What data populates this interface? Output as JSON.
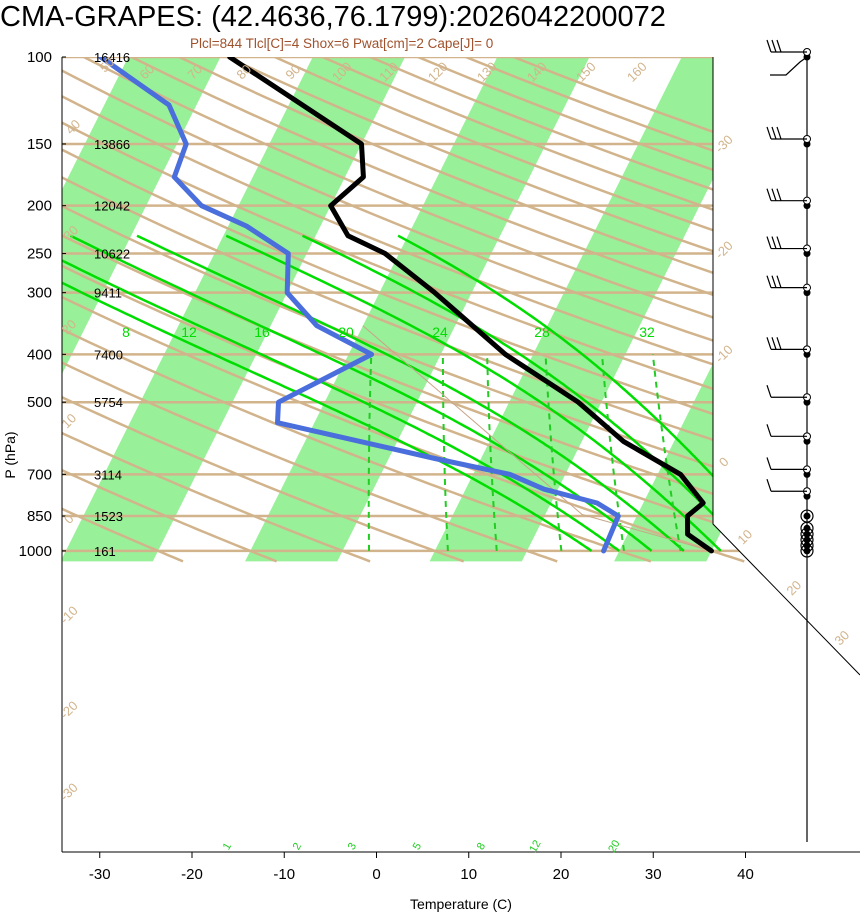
{
  "title": "CMA-GRAPES: (42.4636,76.1799):2026042200072",
  "subtitle": "Plcl=844 Tlcl[C]=4 Shox=6 Pwat[cm]=2 Cape[J]= 0",
  "chart_data": {
    "type": "line",
    "chart_kind": "skew-T log-P diagram",
    "xlabel": "Temperature (C)",
    "ylabel": "P (hPa)",
    "x_ticks": [
      -30,
      -20,
      -10,
      0,
      10,
      20,
      30,
      40
    ],
    "pressure_levels": [
      {
        "p": 100,
        "label": "100",
        "height": "16416"
      },
      {
        "p": 150,
        "label": "150",
        "height": "13866"
      },
      {
        "p": 200,
        "label": "200",
        "height": "12042"
      },
      {
        "p": 250,
        "label": "250",
        "height": "10622"
      },
      {
        "p": 300,
        "label": "300",
        "height": "9411"
      },
      {
        "p": 400,
        "label": "400",
        "height": "7400"
      },
      {
        "p": 500,
        "label": "500",
        "height": "5754"
      },
      {
        "p": 700,
        "label": "700",
        "height": "3114"
      },
      {
        "p": 850,
        "label": "850",
        "height": "1523"
      },
      {
        "p": 1000,
        "label": "1000",
        "height": "161"
      }
    ],
    "dry_adiabat_labels": [
      "-30",
      "-20",
      "-10",
      "0",
      "10",
      "20",
      "30",
      "40",
      "50",
      "60",
      "70",
      "80",
      "90",
      "100",
      "110",
      "120",
      "130",
      "140",
      "150",
      "160"
    ],
    "moist_adiabat_labels": [
      "8",
      "12",
      "16",
      "20",
      "24",
      "28",
      "32"
    ],
    "mixing_ratio_labels": [
      "1",
      "2",
      "3",
      "5",
      "8",
      "12",
      "20"
    ],
    "colors": {
      "temperature": "#000000",
      "dewpoint": "#4a6fdc",
      "moist_adiabat": "#00dd00",
      "mixing_ratio": "#22cc22",
      "dry_adiabat": "#d2b48c",
      "isotherm_band": "#98f098",
      "subtitle": "#a0522d"
    },
    "series": [
      {
        "points": [
          {
            "p": 1000,
            "t": 20.0
          },
          {
            "p": 925,
            "t": 16.5
          },
          {
            "p": 850,
            "t": 15.5
          },
          {
            "p": 800,
            "t": 16.5
          },
          {
            "p": 700,
            "t": 12.5
          },
          {
            "p": 600,
            "t": 4.5
          },
          {
            "p": 500,
            "t": -2.5
          },
          {
            "p": 400,
            "t": -13.0
          },
          {
            "p": 300,
            "t": -24.0
          },
          {
            "p": 250,
            "t": -31.5
          },
          {
            "p": 230,
            "t": -36.5
          },
          {
            "p": 200,
            "t": -40.0
          },
          {
            "p": 175,
            "t": -38.0
          },
          {
            "p": 150,
            "t": -40.0
          },
          {
            "p": 100,
            "t": -59.0
          }
        ]
      },
      {
        "points": [
          {
            "p": 1000,
            "t": 8.3
          },
          {
            "p": 850,
            "t": 8.0
          },
          {
            "p": 800,
            "t": 5.0
          },
          {
            "p": 750,
            "t": -1.5
          },
          {
            "p": 700,
            "t": -6.0
          },
          {
            "p": 650,
            "t": -15.0
          },
          {
            "p": 550,
            "t": -34.0
          },
          {
            "p": 500,
            "t": -35.0
          },
          {
            "p": 400,
            "t": -27.5
          },
          {
            "p": 350,
            "t": -35.0
          },
          {
            "p": 300,
            "t": -40.0
          },
          {
            "p": 250,
            "t": -42.0
          },
          {
            "p": 220,
            "t": -48.0
          },
          {
            "p": 200,
            "t": -54.0
          },
          {
            "p": 175,
            "t": -58.5
          },
          {
            "p": 150,
            "t": -59.0
          },
          {
            "p": 125,
            "t": -63.0
          },
          {
            "p": 100,
            "t": -73.0
          }
        ]
      }
    ],
    "wind_barb_levels": [
      100,
      150,
      200,
      250,
      300,
      400,
      500,
      600,
      700,
      775,
      850,
      900,
      925,
      950,
      975,
      1000
    ]
  }
}
